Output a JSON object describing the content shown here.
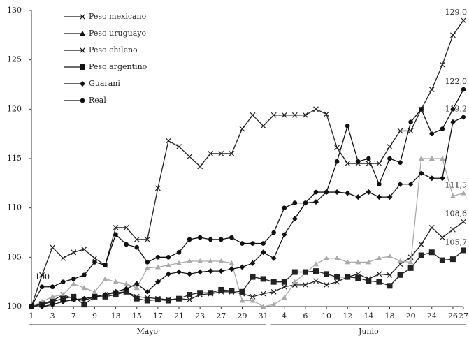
{
  "chart_data": {
    "type": "line",
    "categories": [
      "1",
      null,
      "3",
      null,
      "7",
      null,
      "9",
      null,
      "13",
      null,
      "15",
      null,
      "17",
      null,
      "21",
      null,
      "23",
      null,
      "27",
      null,
      "29",
      null,
      "31",
      null,
      "4",
      null,
      "6",
      null,
      "10",
      null,
      "12",
      null,
      "14",
      null,
      "18",
      null,
      "20",
      null,
      "24",
      null,
      "26",
      "27"
    ],
    "month": [
      "Mayo",
      "Mayo",
      "Mayo",
      "Mayo",
      "Mayo",
      "Mayo",
      "Mayo",
      "Mayo",
      "Mayo",
      "Mayo",
      "Mayo",
      "Mayo",
      "Mayo",
      "Mayo",
      "Mayo",
      "Mayo",
      "Mayo",
      "Mayo",
      "Mayo",
      "Mayo",
      "Mayo",
      "Mayo",
      "Mayo",
      "Junio",
      "Junio",
      "Junio",
      "Junio",
      "Junio",
      "Junio",
      "Junio",
      "Junio",
      "Junio",
      "Junio",
      "Junio",
      "Junio",
      "Junio",
      "Junio",
      "Junio",
      "Junio",
      "Junio",
      "Junio",
      "Junio"
    ],
    "ylim": [
      100,
      130
    ],
    "yticks": [
      100,
      105,
      110,
      115,
      120,
      125,
      130
    ],
    "legend": "top-left",
    "annotation": "100",
    "series": [
      {
        "name": "Peso mexicano",
        "color": "#222222",
        "marker": "x",
        "values": [
          100,
          100.3,
          100.6,
          101.2,
          100.8,
          100.6,
          101,
          101.2,
          101.4,
          101.5,
          101,
          100.9,
          100.8,
          100.7,
          100.8,
          100.7,
          101.2,
          101.3,
          101.5,
          101.5,
          101.3,
          101,
          101.3,
          101.5,
          102,
          102.2,
          102.2,
          102.6,
          102.2,
          102.5,
          103,
          103.3,
          102.8,
          103.3,
          103.2,
          104.3,
          105,
          106.3,
          108,
          107,
          107.8,
          108.6
        ],
        "value_labels": [
          null,
          null,
          null,
          null,
          null,
          null,
          null,
          null,
          null,
          null,
          null,
          null,
          null,
          null,
          null,
          null,
          null,
          null,
          null,
          null,
          null,
          null,
          null,
          null,
          null,
          null,
          null,
          null,
          null,
          null,
          null,
          null,
          null,
          null,
          null,
          null,
          null,
          null,
          null,
          null,
          null,
          "108,6"
        ]
      },
      {
        "name": "Peso uruguayo",
        "color": "#aaaaaa",
        "marker": "triangle",
        "values": [
          100,
          100.5,
          101,
          101.2,
          102.3,
          101.9,
          101.5,
          102.8,
          102.5,
          102.3,
          101.9,
          103.9,
          104,
          104.2,
          104.4,
          104.6,
          104.6,
          104.6,
          104.6,
          104.4,
          100.6,
          100.6,
          100,
          100.2,
          100.9,
          102.5,
          103.4,
          104.3,
          104.9,
          104.9,
          104.5,
          104.5,
          104.5,
          104.9,
          105.1,
          104.6,
          104.5,
          115,
          115,
          115,
          111.2,
          111.5
        ],
        "value_labels": [
          null,
          null,
          null,
          null,
          null,
          null,
          null,
          null,
          null,
          null,
          null,
          null,
          null,
          null,
          null,
          null,
          null,
          null,
          null,
          null,
          null,
          null,
          null,
          null,
          null,
          null,
          null,
          null,
          null,
          null,
          null,
          null,
          null,
          null,
          null,
          null,
          null,
          null,
          null,
          null,
          null,
          "111,5"
        ]
      },
      {
        "name": "Peso chileno",
        "color": "#222222",
        "marker": "x",
        "values": [
          100,
          103.2,
          106,
          104.9,
          105.5,
          105.8,
          104.9,
          104.2,
          108,
          108,
          106.8,
          106.8,
          112,
          116.8,
          116.2,
          115.2,
          114.2,
          115.5,
          115.5,
          115.5,
          118,
          119.4,
          118.3,
          119.4,
          119.4,
          119.4,
          119.4,
          120,
          119.5,
          116.1,
          114.5,
          114.5,
          114.5,
          114.5,
          116.2,
          117.8,
          117.8,
          120,
          122,
          124.5,
          127.5,
          129
        ],
        "value_labels": [
          null,
          null,
          null,
          null,
          null,
          null,
          null,
          null,
          null,
          null,
          null,
          null,
          null,
          null,
          null,
          null,
          null,
          null,
          null,
          null,
          null,
          null,
          null,
          null,
          null,
          null,
          null,
          null,
          null,
          null,
          null,
          null,
          null,
          null,
          null,
          null,
          null,
          null,
          null,
          null,
          null,
          "129,0"
        ]
      },
      {
        "name": "Peso argentino",
        "color": "#222222",
        "marker": "bigsquare",
        "values": [
          100,
          100.2,
          100.5,
          100.8,
          101,
          100.2,
          101,
          101,
          101.2,
          101.5,
          100.8,
          100.6,
          100.7,
          100.6,
          100.8,
          101.2,
          101.4,
          101.4,
          101.7,
          101.6,
          101.5,
          103,
          102.8,
          102.5,
          102.5,
          103.5,
          103.5,
          103.6,
          103.3,
          103,
          103,
          102.9,
          102.6,
          102.5,
          102.1,
          103.2,
          103.9,
          105.2,
          105.5,
          104.7,
          104.8,
          105.7
        ],
        "value_labels": [
          null,
          null,
          null,
          null,
          null,
          null,
          null,
          null,
          null,
          null,
          null,
          null,
          null,
          null,
          null,
          null,
          null,
          null,
          null,
          null,
          null,
          null,
          null,
          null,
          null,
          null,
          null,
          null,
          null,
          null,
          null,
          null,
          null,
          null,
          null,
          null,
          null,
          null,
          null,
          null,
          null,
          "105,7"
        ]
      },
      {
        "name": "Guarani",
        "color": "#111111",
        "marker": "diamond",
        "values": [
          100,
          100,
          100.2,
          100.5,
          100.7,
          100.8,
          101,
          101.2,
          101.5,
          101.8,
          102.3,
          101.5,
          102.5,
          103.3,
          103.5,
          103.3,
          103.5,
          103.6,
          103.6,
          103.8,
          104,
          104.4,
          105.5,
          104.9,
          107.3,
          108.9,
          110.5,
          110.6,
          111.6,
          111.6,
          111.5,
          111.1,
          111.6,
          111.1,
          111.1,
          112.4,
          112.4,
          113.5,
          113,
          113,
          118.7,
          119.2
        ],
        "value_labels": [
          null,
          null,
          null,
          null,
          null,
          null,
          null,
          null,
          null,
          null,
          null,
          null,
          null,
          null,
          null,
          null,
          null,
          null,
          null,
          null,
          null,
          null,
          null,
          null,
          null,
          null,
          null,
          null,
          null,
          null,
          null,
          null,
          null,
          null,
          null,
          null,
          null,
          null,
          null,
          null,
          null,
          "119,2"
        ]
      },
      {
        "name": "Real",
        "color": "#111111",
        "marker": "circle",
        "values": [
          100,
          102,
          102,
          102.5,
          102.8,
          103.2,
          104.5,
          104.2,
          107.3,
          106.3,
          106,
          104.5,
          105,
          105,
          105.5,
          106.8,
          107,
          106.8,
          106.8,
          107,
          106.4,
          106.4,
          106.4,
          107.5,
          110,
          110.5,
          110.5,
          111.6,
          111.6,
          114.7,
          118.3,
          114.7,
          115,
          112.4,
          115,
          114.6,
          118.7,
          120,
          117.5,
          118,
          120,
          122
        ],
        "value_labels": [
          null,
          null,
          null,
          null,
          null,
          null,
          null,
          null,
          null,
          null,
          null,
          null,
          null,
          null,
          null,
          null,
          null,
          null,
          null,
          null,
          null,
          null,
          null,
          null,
          null,
          null,
          null,
          null,
          null,
          null,
          null,
          null,
          null,
          null,
          null,
          null,
          null,
          null,
          null,
          null,
          null,
          "122,0"
        ]
      }
    ]
  }
}
